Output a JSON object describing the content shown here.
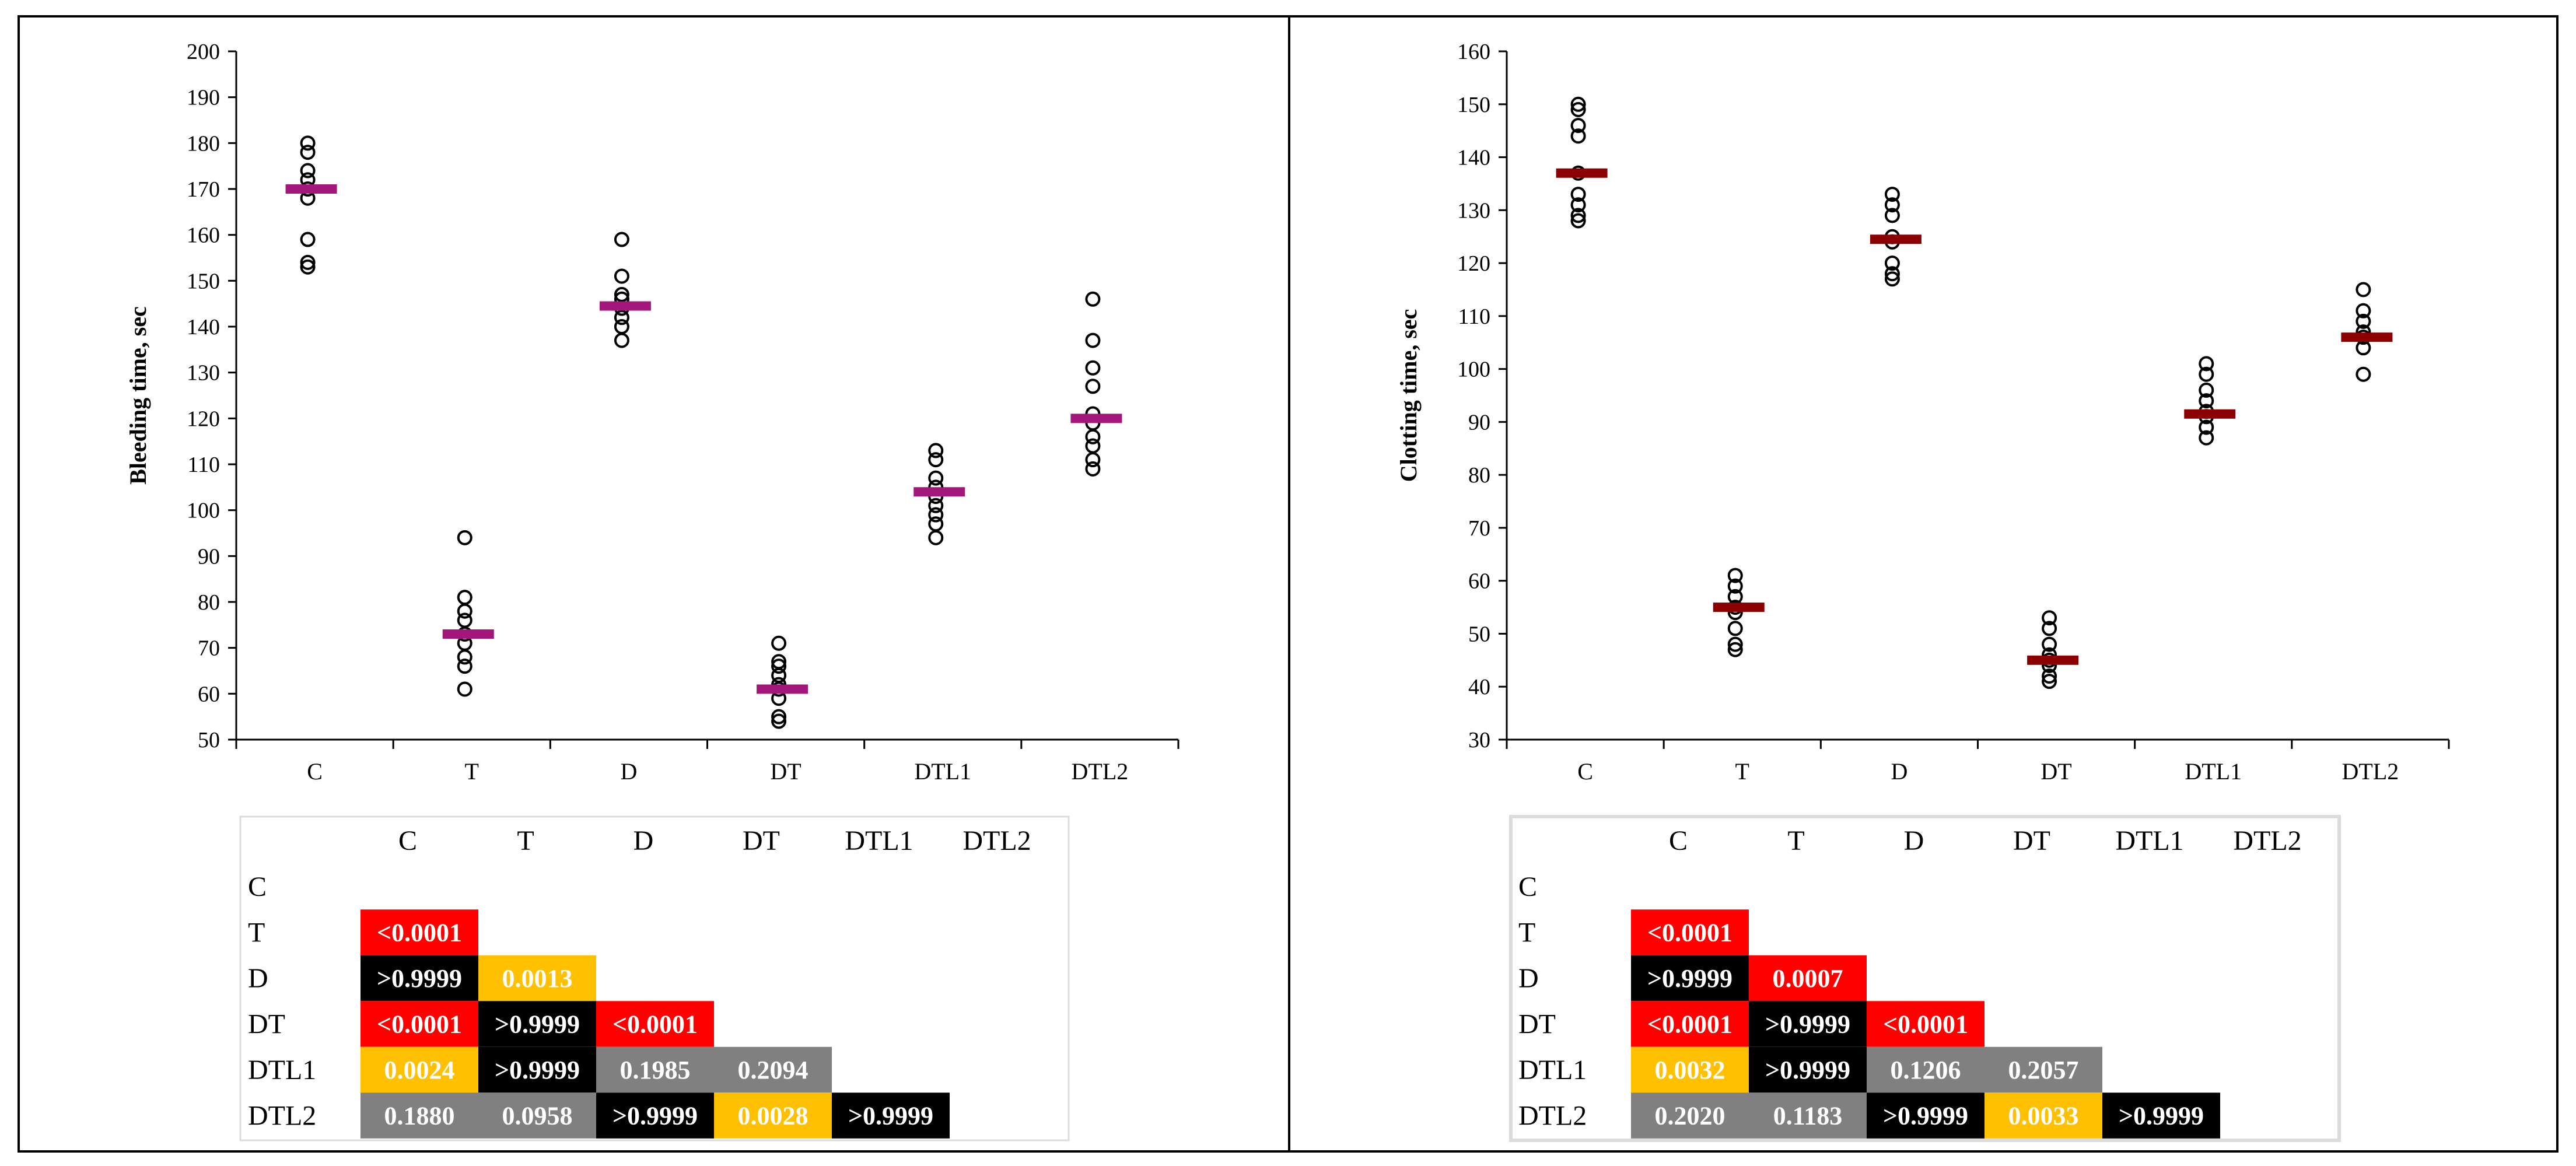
{
  "chart_data": [
    {
      "type": "scatter",
      "title": "",
      "xlabel": "",
      "ylabel": "Bleeding time, sec",
      "ylim": [
        50,
        200
      ],
      "ytick_step": 10,
      "grid": false,
      "categories": [
        "C",
        "T",
        "D",
        "DT",
        "DTL1",
        "DTL2"
      ],
      "points": [
        [
          180,
          178,
          174,
          172,
          170,
          168,
          159,
          154,
          153
        ],
        [
          94,
          81,
          78,
          76,
          73,
          71,
          68,
          66,
          61
        ],
        [
          159,
          151,
          147,
          146,
          144,
          142,
          140,
          137
        ],
        [
          71,
          67,
          66,
          64,
          62,
          61,
          59,
          55,
          54
        ],
        [
          113,
          111,
          107,
          105,
          103,
          101,
          99,
          97,
          94
        ],
        [
          146,
          137,
          131,
          127,
          121,
          119,
          116,
          114,
          111,
          109
        ]
      ],
      "means": [
        170,
        73,
        144.5,
        61,
        104,
        120
      ],
      "mean_color": "#a3177a",
      "pvalue_table": {
        "labels": [
          "C",
          "T",
          "D",
          "DT",
          "DTL1",
          "DTL2"
        ],
        "rows": [
          [],
          [
            {
              "v": "<0.0001",
              "c": "#ff0000"
            }
          ],
          [
            {
              "v": ">0.9999",
              "c": "#000000"
            },
            {
              "v": "0.0013",
              "c": "#ffc000"
            }
          ],
          [
            {
              "v": "<0.0001",
              "c": "#ff0000"
            },
            {
              "v": ">0.9999",
              "c": "#000000"
            },
            {
              "v": "<0.0001",
              "c": "#ff0000"
            }
          ],
          [
            {
              "v": "0.0024",
              "c": "#ffc000"
            },
            {
              "v": ">0.9999",
              "c": "#000000"
            },
            {
              "v": "0.1985",
              "c": "#808080"
            },
            {
              "v": "0.2094",
              "c": "#808080"
            }
          ],
          [
            {
              "v": "0.1880",
              "c": "#808080"
            },
            {
              "v": "0.0958",
              "c": "#808080"
            },
            {
              "v": ">0.9999",
              "c": "#000000"
            },
            {
              "v": "0.0028",
              "c": "#ffc000"
            },
            {
              "v": ">0.9999",
              "c": "#000000"
            }
          ]
        ]
      }
    },
    {
      "type": "scatter",
      "title": "",
      "xlabel": "",
      "ylabel": "Clotting time, sec",
      "ylim": [
        30,
        160
      ],
      "ytick_step": 10,
      "grid": false,
      "categories": [
        "C",
        "T",
        "D",
        "DT",
        "DTL1",
        "DTL2"
      ],
      "points": [
        [
          150,
          149,
          146,
          144,
          137,
          133,
          131,
          129,
          128
        ],
        [
          61,
          59,
          57,
          55,
          54,
          51,
          48,
          47
        ],
        [
          133,
          131,
          129,
          125,
          124,
          120,
          118,
          117
        ],
        [
          53,
          51,
          48,
          46,
          45,
          44,
          42,
          41
        ],
        [
          101,
          99,
          96,
          94,
          92,
          91,
          89,
          87
        ],
        [
          115,
          111,
          109,
          107,
          106,
          104,
          99
        ]
      ],
      "means": [
        137,
        55,
        124.5,
        45,
        91.5,
        106
      ],
      "mean_color": "#8b0000",
      "pvalue_table": {
        "labels": [
          "C",
          "T",
          "D",
          "DT",
          "DTL1",
          "DTL2"
        ],
        "rows": [
          [],
          [
            {
              "v": "<0.0001",
              "c": "#ff0000"
            }
          ],
          [
            {
              "v": ">0.9999",
              "c": "#000000"
            },
            {
              "v": "0.0007",
              "c": "#ff0000"
            }
          ],
          [
            {
              "v": "<0.0001",
              "c": "#ff0000"
            },
            {
              "v": ">0.9999",
              "c": "#000000"
            },
            {
              "v": "<0.0001",
              "c": "#ff0000"
            }
          ],
          [
            {
              "v": "0.0032",
              "c": "#ffc000"
            },
            {
              "v": ">0.9999",
              "c": "#000000"
            },
            {
              "v": "0.1206",
              "c": "#808080"
            },
            {
              "v": "0.2057",
              "c": "#808080"
            }
          ],
          [
            {
              "v": "0.2020",
              "c": "#808080"
            },
            {
              "v": "0.1183",
              "c": "#808080"
            },
            {
              "v": ">0.9999",
              "c": "#000000"
            },
            {
              "v": "0.0033",
              "c": "#ffc000"
            },
            {
              "v": ">0.9999",
              "c": "#000000"
            }
          ]
        ]
      }
    }
  ]
}
